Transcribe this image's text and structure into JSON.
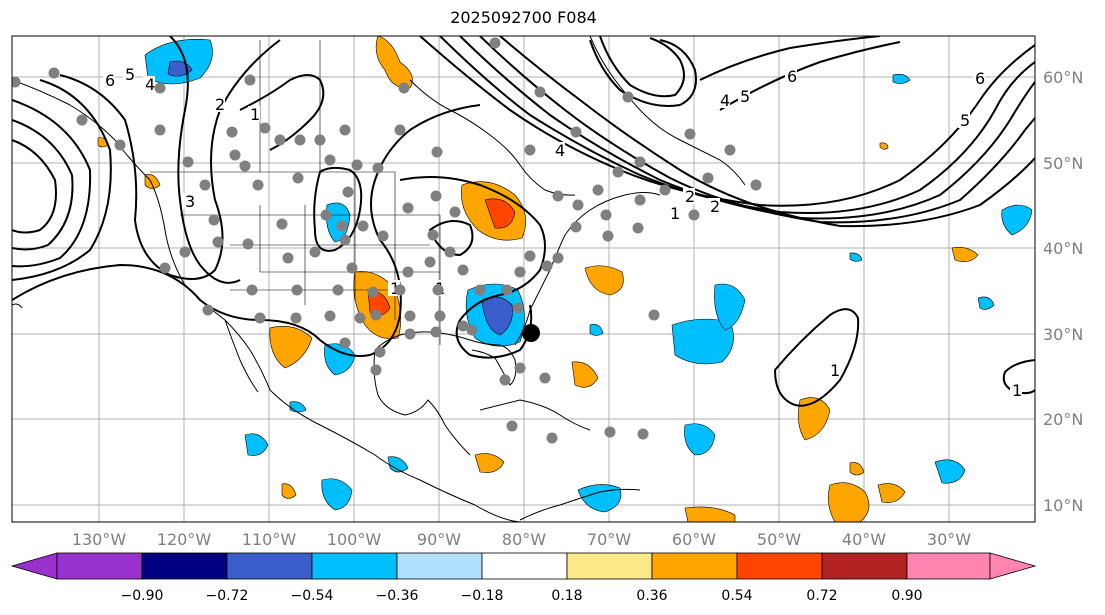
{
  "title": "2025092700 F084",
  "lon_labels": [
    "130°W",
    "120°W",
    "110°W",
    "100°W",
    "90°W",
    "80°W",
    "70°W",
    "60°W",
    "50°W",
    "40°W",
    "30°W"
  ],
  "lat_labels": [
    "60°N",
    "50°N",
    "40°N",
    "30°N",
    "20°N",
    "10°N"
  ],
  "colorbar": {
    "ticks": [
      "−0.90",
      "−0.72",
      "−0.54",
      "−0.36",
      "−0.18",
      "0.18",
      "0.36",
      "0.54",
      "0.72",
      "0.90"
    ],
    "colors": [
      "#9932cc",
      "#000080",
      "#3a5fcd",
      "#00bfff",
      "#b2e0ff",
      "#ffffff",
      "#ffe88a",
      "#ffa500",
      "#ff4500",
      "#b22222",
      "#ff85b0"
    ]
  },
  "contour_labels": [
    "1",
    "2",
    "3",
    "4",
    "5",
    "6",
    "1",
    "2",
    "4",
    "1",
    "1",
    "2",
    "4",
    "5",
    "6",
    "5",
    "6",
    "1",
    "1"
  ]
}
